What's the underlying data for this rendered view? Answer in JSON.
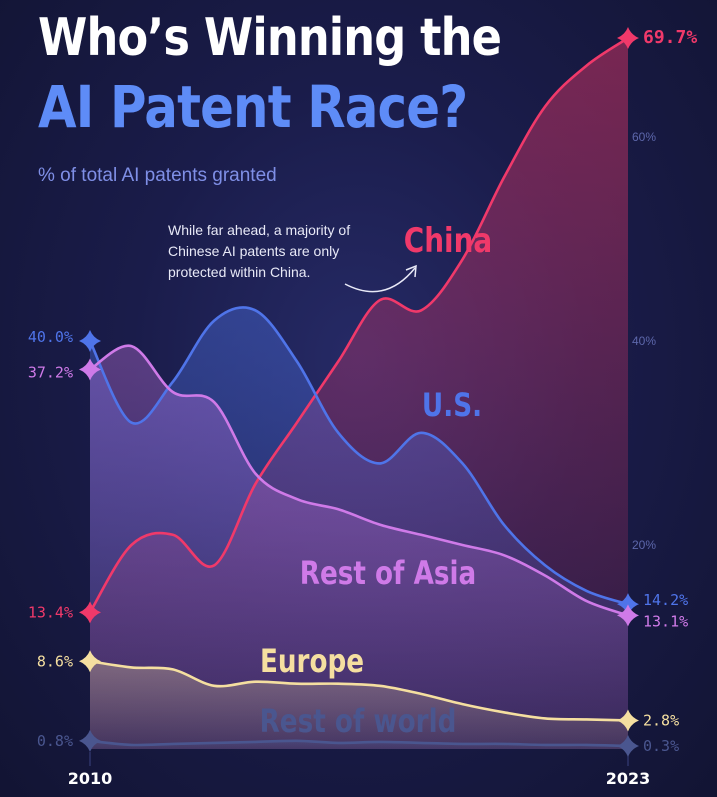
{
  "title": {
    "line1": "Who’s Winning the",
    "line2": "AI Patent Race?"
  },
  "subtitle": "% of total AI patents granted",
  "annotation": "While far ahead, a majority of Chinese AI patents are only protected within China.",
  "chart_data": {
    "type": "area",
    "x": [
      2010,
      2011,
      2012,
      2013,
      2014,
      2015,
      2016,
      2017,
      2018,
      2019,
      2020,
      2021,
      2022,
      2023
    ],
    "xticks": [
      "2010",
      "2023"
    ],
    "yticks": [
      "20%",
      "40%",
      "60%"
    ],
    "ylim": [
      0,
      73
    ],
    "grid": false,
    "series": [
      {
        "name": "China",
        "color": "#f0396a",
        "values": [
          13.4,
          20.0,
          21.0,
          18.0,
          26.0,
          32.0,
          38.0,
          44.0,
          43.0,
          48.0,
          56.0,
          63.0,
          67.0,
          69.7
        ],
        "start_label": "13.4%",
        "end_label": "69.7%"
      },
      {
        "name": "U.S.",
        "color": "#4f74e9",
        "values": [
          40.0,
          32.0,
          36.0,
          42.0,
          43.0,
          38.0,
          31.0,
          28.0,
          31.0,
          28.0,
          22.0,
          18.0,
          15.5,
          14.2
        ],
        "start_label": "40.0%",
        "end_label": "14.2%"
      },
      {
        "name": "Rest of Asia",
        "color": "#cf7ae8",
        "values": [
          37.2,
          39.5,
          35.0,
          34.0,
          27.0,
          24.5,
          23.5,
          22.0,
          21.0,
          20.0,
          19.0,
          17.0,
          14.5,
          13.1
        ],
        "start_label": "37.2%",
        "end_label": "13.1%"
      },
      {
        "name": "Europe",
        "color": "#f5dfa0",
        "values": [
          8.6,
          8.0,
          7.8,
          6.2,
          6.6,
          6.4,
          6.4,
          6.2,
          5.4,
          4.4,
          3.6,
          3.0,
          2.9,
          2.8
        ],
        "start_label": "8.6%",
        "end_label": "2.8%"
      },
      {
        "name": "Rest of world",
        "color": "#4a568f",
        "values": [
          0.8,
          0.4,
          0.5,
          0.6,
          0.7,
          0.8,
          0.6,
          0.7,
          0.6,
          0.5,
          0.5,
          0.4,
          0.4,
          0.3
        ],
        "start_label": "0.8%",
        "end_label": "0.3%"
      }
    ]
  }
}
